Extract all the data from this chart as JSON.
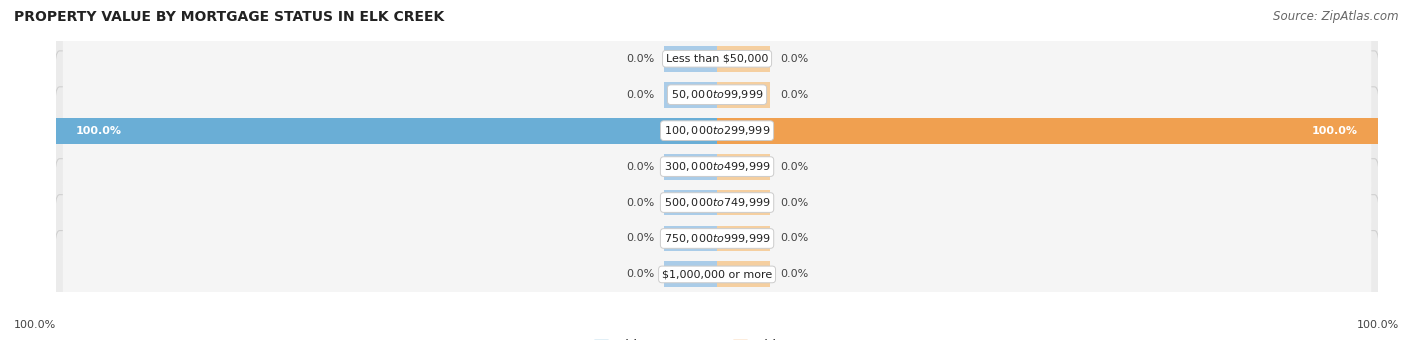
{
  "title": "PROPERTY VALUE BY MORTGAGE STATUS IN ELK CREEK",
  "source": "Source: ZipAtlas.com",
  "categories": [
    "Less than $50,000",
    "$50,000 to $99,999",
    "$100,000 to $299,999",
    "$300,000 to $499,999",
    "$500,000 to $749,999",
    "$750,000 to $999,999",
    "$1,000,000 or more"
  ],
  "without_mortgage": [
    0.0,
    0.0,
    100.0,
    0.0,
    0.0,
    0.0,
    0.0
  ],
  "with_mortgage": [
    0.0,
    0.0,
    100.0,
    0.0,
    0.0,
    0.0,
    0.0
  ],
  "color_without": "#6aaed6",
  "color_with": "#f0a050",
  "color_without_light": "#aacce8",
  "color_with_light": "#f5cfa0",
  "row_bg": "#ebebeb",
  "row_inner_bg": "#f5f5f5",
  "bottom_left": "100.0%",
  "bottom_right": "100.0%",
  "title_fontsize": 10,
  "source_fontsize": 8.5,
  "bar_label_fontsize": 8,
  "category_fontsize": 8,
  "legend_fontsize": 8.5,
  "stub_size": 8.0,
  "xlim": 100
}
